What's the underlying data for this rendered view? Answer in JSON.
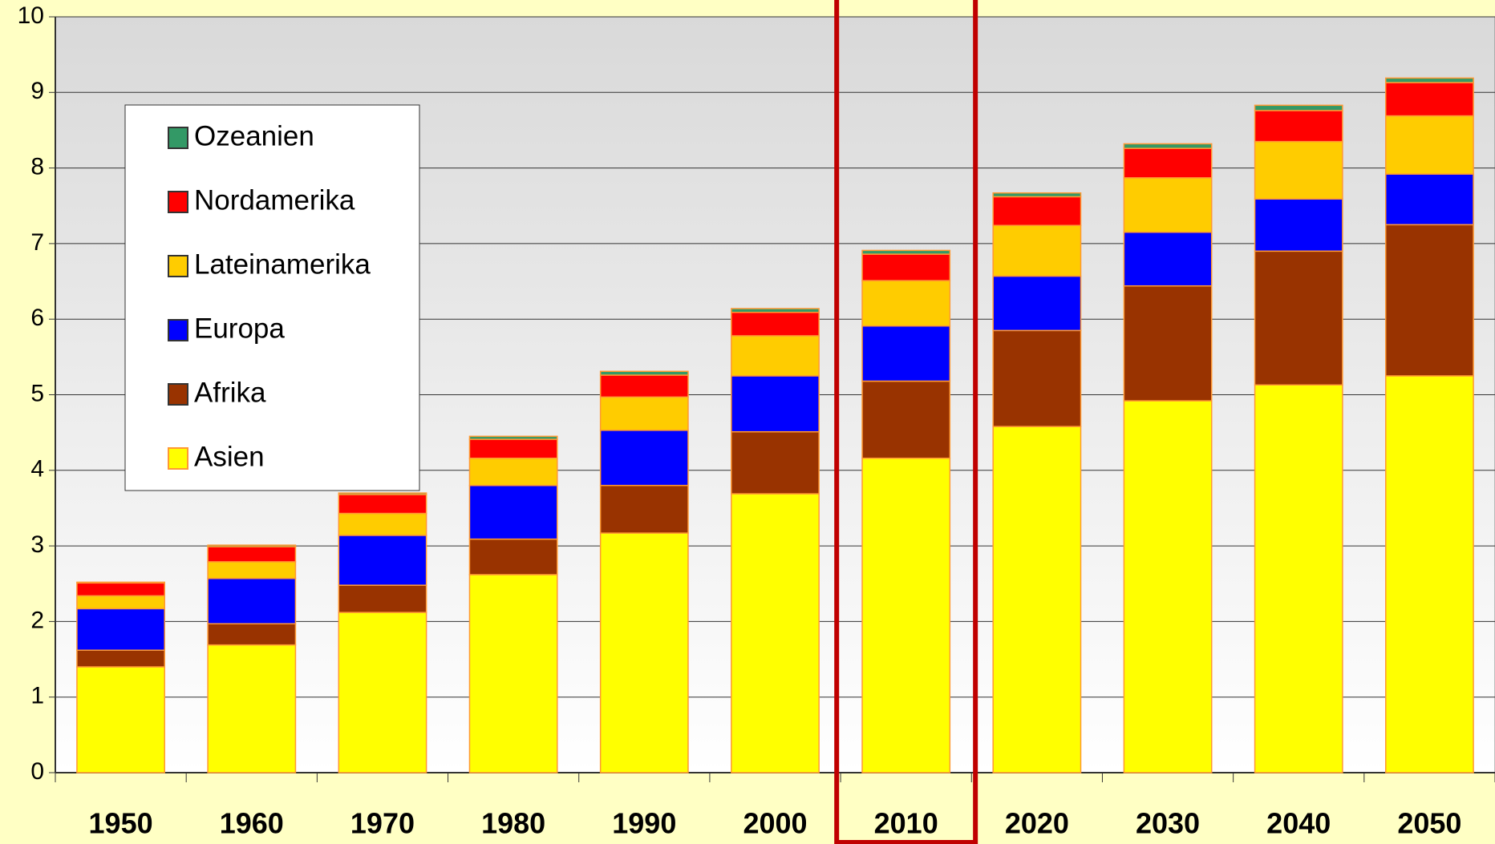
{
  "chart_data": {
    "type": "stacked_bar",
    "categories": [
      "1950",
      "1960",
      "1970",
      "1980",
      "1990",
      "2000",
      "2010",
      "2020",
      "2030",
      "2040",
      "2050"
    ],
    "series": [
      {
        "name": "Asien",
        "color": "#ffff00",
        "values": [
          1.4,
          1.69,
          2.12,
          2.62,
          3.17,
          3.69,
          4.16,
          4.58,
          4.92,
          5.13,
          5.25
        ]
      },
      {
        "name": "Afrika",
        "color": "#993300",
        "values": [
          0.22,
          0.28,
          0.36,
          0.47,
          0.63,
          0.82,
          1.02,
          1.27,
          1.52,
          1.77,
          2.0
        ]
      },
      {
        "name": "Europa",
        "color": "#0000ff",
        "values": [
          0.55,
          0.6,
          0.66,
          0.71,
          0.73,
          0.74,
          0.73,
          0.72,
          0.71,
          0.69,
          0.67
        ]
      },
      {
        "name": "Lateinamerika",
        "color": "#ffcc00",
        "values": [
          0.17,
          0.22,
          0.29,
          0.36,
          0.44,
          0.53,
          0.6,
          0.67,
          0.72,
          0.76,
          0.77
        ]
      },
      {
        "name": "Nordamerika",
        "color": "#ff0000",
        "values": [
          0.17,
          0.2,
          0.25,
          0.25,
          0.29,
          0.31,
          0.35,
          0.38,
          0.39,
          0.41,
          0.44
        ]
      },
      {
        "name": "Ozeanien",
        "color": "#339966",
        "values": [
          0.01,
          0.02,
          0.02,
          0.04,
          0.05,
          0.05,
          0.05,
          0.05,
          0.06,
          0.07,
          0.06
        ]
      }
    ],
    "ylim": [
      0,
      10
    ],
    "yticks": [
      0,
      1,
      2,
      3,
      4,
      5,
      6,
      7,
      8,
      9,
      10
    ],
    "grid": true,
    "highlight": "2010"
  }
}
